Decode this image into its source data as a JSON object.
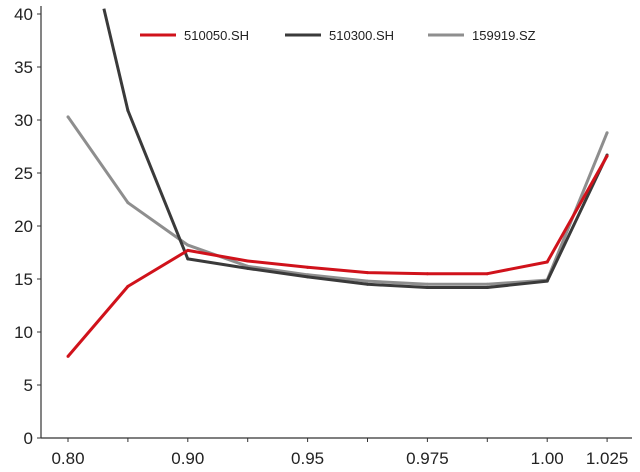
{
  "chart_data": {
    "type": "line",
    "x_categories": [
      "0.80",
      "0.85",
      "0.90",
      "0.925",
      "0.95",
      "0.9625",
      "0.975",
      "0.9875",
      "1.00",
      "1.025"
    ],
    "x_tick_labels": [
      "0.80",
      "0.90",
      "0.95",
      "0.975",
      "1.00",
      "1.025"
    ],
    "y_ticks": [
      "0",
      "5",
      "10",
      "15",
      "20",
      "25",
      "30",
      "35",
      "40"
    ],
    "ylim": [
      0,
      40
    ],
    "series": [
      {
        "name": "510050.SH",
        "color": "#d0121b",
        "values": [
          7.7,
          14.3,
          17.7,
          16.7,
          16.1,
          15.6,
          15.5,
          15.5,
          16.6,
          26.6
        ]
      },
      {
        "name": "510300.SH",
        "color": "#3a3a3a",
        "values": [
          null,
          30.9,
          16.9,
          16.0,
          15.2,
          14.5,
          14.2,
          14.2,
          14.8,
          26.7
        ],
        "lead_in": {
          "x_frac": 0.6,
          "value": 40.5
        }
      },
      {
        "name": "159919.SZ",
        "color": "#8e8e8e",
        "values": [
          30.3,
          22.2,
          18.2,
          16.2,
          15.4,
          14.8,
          14.5,
          14.5,
          14.9,
          28.8
        ]
      }
    ],
    "legend_position": "top",
    "grid": false
  }
}
